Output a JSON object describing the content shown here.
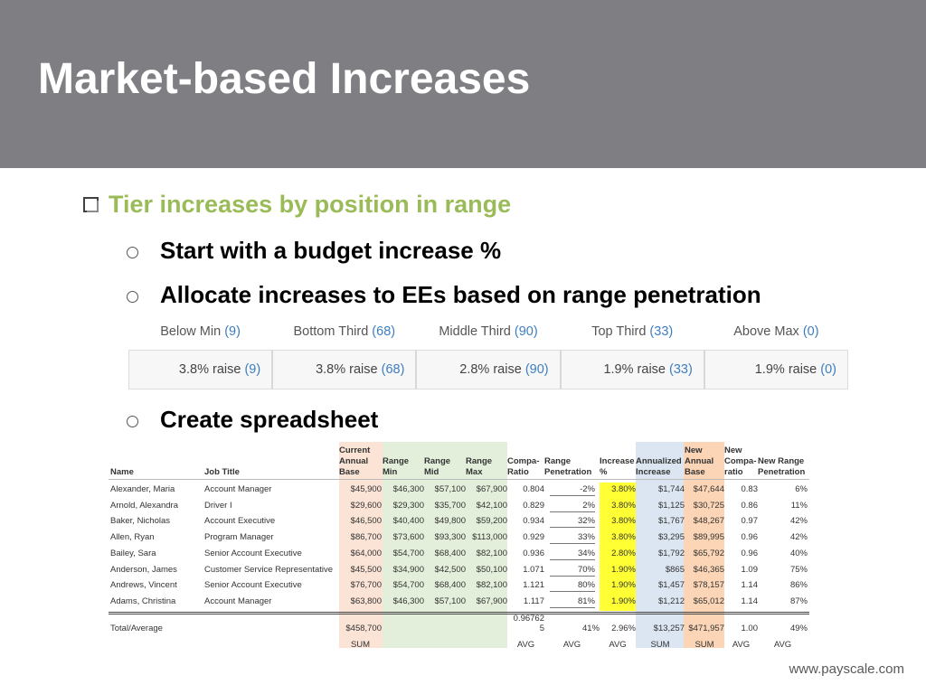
{
  "slide": {
    "title": "Market-based Increases",
    "bullet": "Tier increases by position in range",
    "sub_items": [
      "Start with a budget increase %",
      "Allocate increases to EEs based on range penetration",
      "Create spreadsheet"
    ],
    "footer": "www.payscale.com"
  },
  "tiers": [
    {
      "name": "Below Min",
      "count": "(9)",
      "raise": "3.8% raise",
      "raise_count": "(9)"
    },
    {
      "name": "Bottom Third",
      "count": "(68)",
      "raise": "3.8% raise",
      "raise_count": "(68)"
    },
    {
      "name": "Middle Third",
      "count": "(90)",
      "raise": "2.8% raise",
      "raise_count": "(90)"
    },
    {
      "name": "Top Third",
      "count": "(33)",
      "raise": "1.9% raise",
      "raise_count": "(33)"
    },
    {
      "name": "Above Max",
      "count": "(0)",
      "raise": "1.9% raise",
      "raise_count": "(0)"
    }
  ],
  "spreadsheet": {
    "headers": {
      "name": [
        "Name"
      ],
      "job": [
        "Job Title"
      ],
      "base": [
        "Current",
        "Annual",
        "Base"
      ],
      "min": [
        "Range",
        "Min"
      ],
      "mid": [
        "Range",
        "Mid"
      ],
      "max": [
        "Range",
        "Max"
      ],
      "ratio": [
        "Compa-",
        "Ratio"
      ],
      "pen": [
        "Range",
        "Penetration"
      ],
      "inc": [
        "Increase",
        "%"
      ],
      "ann": [
        "Annualized",
        "Increase"
      ],
      "newbase": [
        "New",
        "Annual",
        "Base"
      ],
      "newratio": [
        "New",
        "Compa-",
        "ratio"
      ],
      "newpen": [
        "New Range",
        "Penetration"
      ]
    },
    "rows": [
      {
        "name": "Alexander, Maria",
        "job": "Account Manager",
        "base": "$45,900",
        "min": "$46,300",
        "mid": "$57,100",
        "max": "$67,900",
        "ratio": "0.804",
        "pen": "-2%",
        "inc": "3.80%",
        "ann": "$1,744",
        "newbase": "$47,644",
        "newratio": "0.83",
        "newpen": "6%"
      },
      {
        "name": "Arnold, Alexandra",
        "job": "Driver I",
        "base": "$29,600",
        "min": "$29,300",
        "mid": "$35,700",
        "max": "$42,100",
        "ratio": "0.829",
        "pen": "2%",
        "inc": "3.80%",
        "ann": "$1,125",
        "newbase": "$30,725",
        "newratio": "0.86",
        "newpen": "11%"
      },
      {
        "name": "Baker, Nicholas",
        "job": "Account Executive",
        "base": "$46,500",
        "min": "$40,400",
        "mid": "$49,800",
        "max": "$59,200",
        "ratio": "0.934",
        "pen": "32%",
        "inc": "3.80%",
        "ann": "$1,767",
        "newbase": "$48,267",
        "newratio": "0.97",
        "newpen": "42%"
      },
      {
        "name": "Allen, Ryan",
        "job": "Program Manager",
        "base": "$86,700",
        "min": "$73,600",
        "mid": "$93,300",
        "max": "$113,000",
        "ratio": "0.929",
        "pen": "33%",
        "inc": "3.80%",
        "ann": "$3,295",
        "newbase": "$89,995",
        "newratio": "0.96",
        "newpen": "42%"
      },
      {
        "name": "Bailey, Sara",
        "job": "Senior Account Executive",
        "base": "$64,000",
        "min": "$54,700",
        "mid": "$68,400",
        "max": "$82,100",
        "ratio": "0.936",
        "pen": "34%",
        "inc": "2.80%",
        "ann": "$1,792",
        "newbase": "$65,792",
        "newratio": "0.96",
        "newpen": "40%"
      },
      {
        "name": "Anderson, James",
        "job": "Customer Service Representative",
        "base": "$45,500",
        "min": "$34,900",
        "mid": "$42,500",
        "max": "$50,100",
        "ratio": "1.071",
        "pen": "70%",
        "inc": "1.90%",
        "ann": "$865",
        "newbase": "$46,365",
        "newratio": "1.09",
        "newpen": "75%"
      },
      {
        "name": "Andrews, Vincent",
        "job": "Senior Account Executive",
        "base": "$76,700",
        "min": "$54,700",
        "mid": "$68,400",
        "max": "$82,100",
        "ratio": "1.121",
        "pen": "80%",
        "inc": "1.90%",
        "ann": "$1,457",
        "newbase": "$78,157",
        "newratio": "1.14",
        "newpen": "86%"
      },
      {
        "name": "Adams, Christina",
        "job": "Account Manager",
        "base": "$63,800",
        "min": "$46,300",
        "mid": "$57,100",
        "max": "$67,900",
        "ratio": "1.117",
        "pen": "81%",
        "inc": "1.90%",
        "ann": "$1,212",
        "newbase": "$65,012",
        "newratio": "1.14",
        "newpen": "87%"
      }
    ],
    "total": {
      "name": "Total/Average",
      "base": "$458,700",
      "ratio_top": "0.96762",
      "ratio_bottom": "5",
      "pen": "41%",
      "inc": "2.96%",
      "ann": "$13,257",
      "newbase": "$471,957",
      "newratio": "1.00",
      "newpen": "49%"
    },
    "agg": {
      "base": "SUM",
      "ratio": "AVG",
      "pen": "AVG",
      "inc": "AVG",
      "ann": "SUM",
      "newbase": "SUM",
      "newratio": "AVG",
      "newpen": "AVG"
    },
    "colors": {
      "base_band": "#fbe3d6",
      "range_band": "#e3efda",
      "increase_band": "#ffff33",
      "annualized_band": "#dce6f2",
      "newbase_band": "#fbd5b5"
    }
  }
}
